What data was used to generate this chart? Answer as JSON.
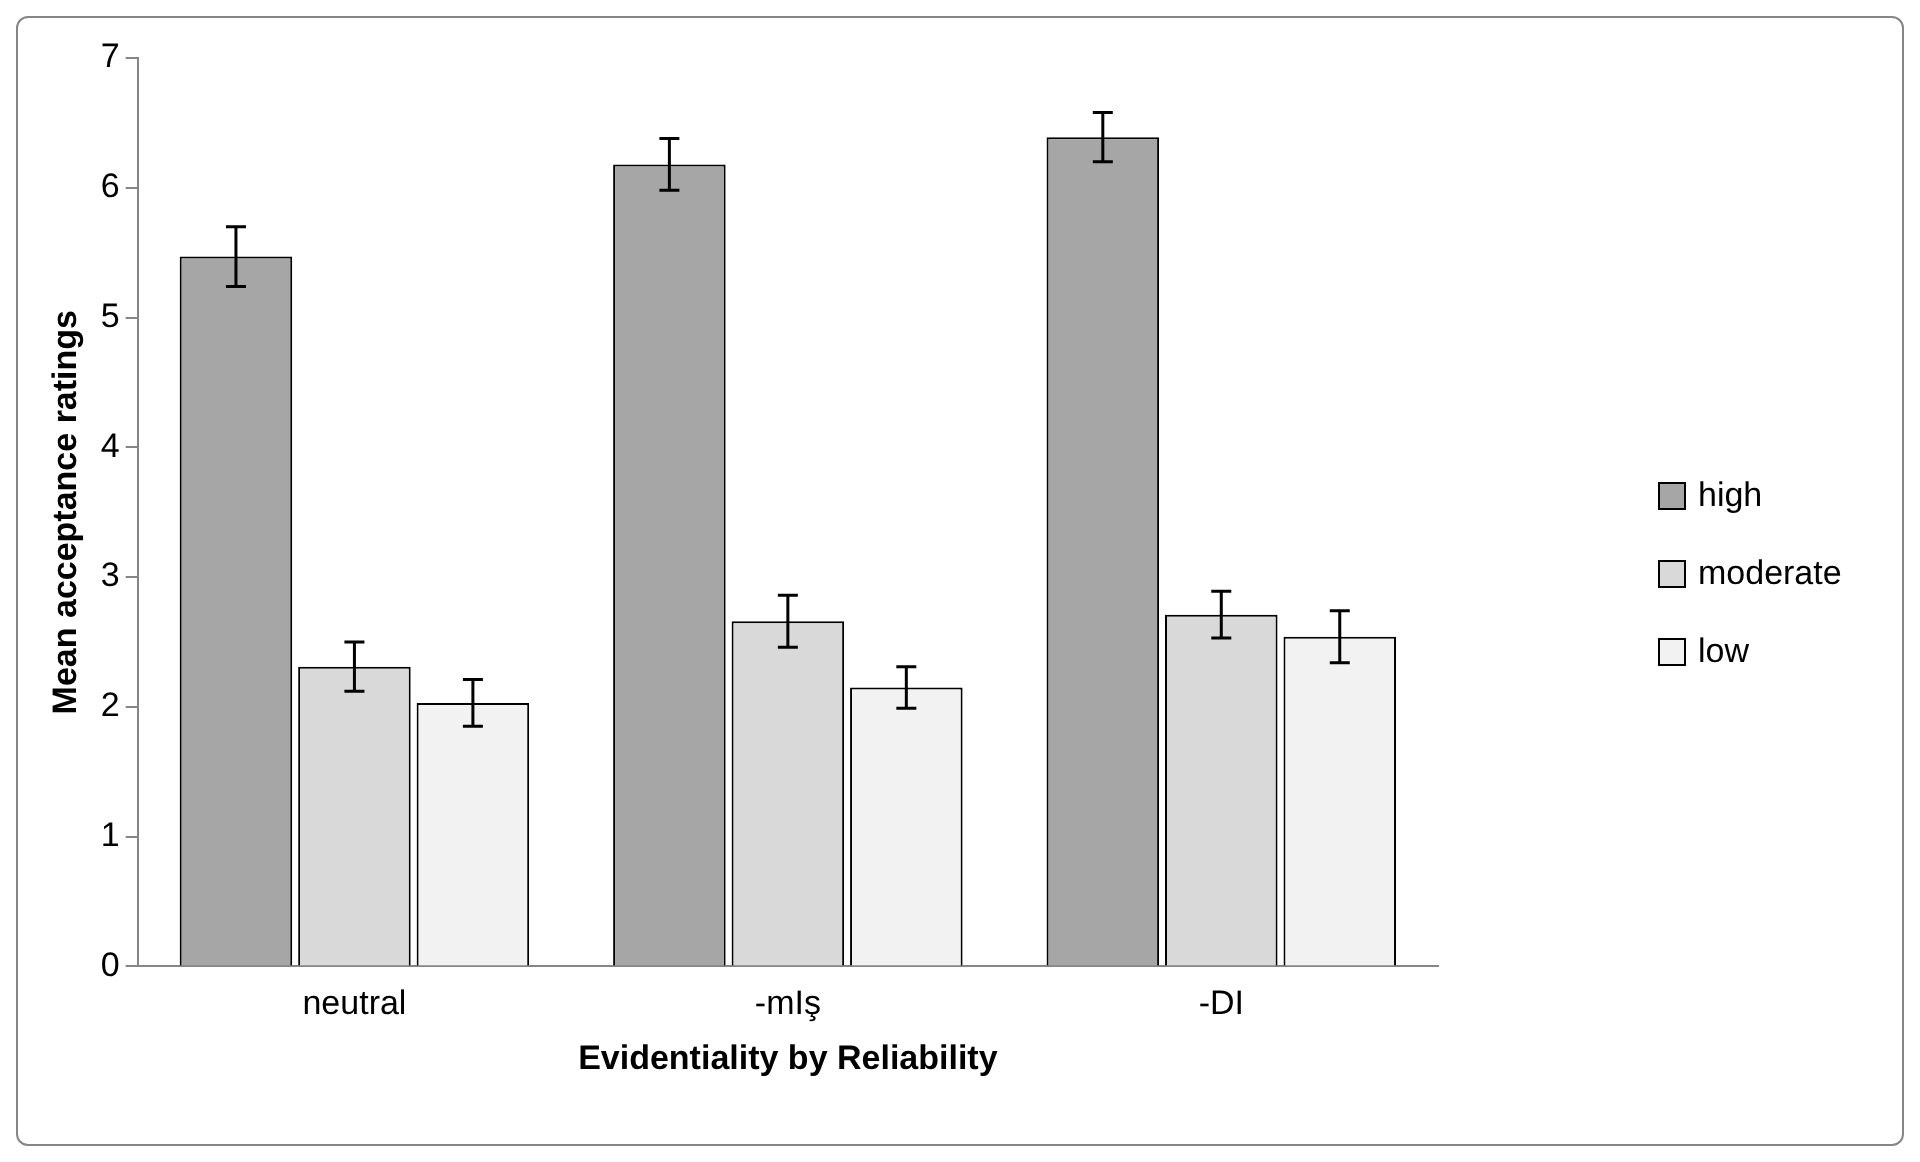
{
  "chart_data": {
    "type": "bar",
    "xlabel": "Evidentiality by Reliability",
    "ylabel": "Mean acceptance ratings",
    "categories": [
      "neutral",
      "-mIş",
      "-DI"
    ],
    "series": [
      {
        "name": "high",
        "color": "#a6a6a6",
        "values": [
          5.47,
          6.18,
          6.39
        ],
        "errors": [
          0.23,
          0.2,
          0.19
        ]
      },
      {
        "name": "moderate",
        "color": "#d9d9d9",
        "values": [
          2.31,
          2.66,
          2.71
        ],
        "errors": [
          0.19,
          0.2,
          0.18
        ]
      },
      {
        "name": "low",
        "color": "#f2f2f2",
        "values": [
          2.03,
          2.15,
          2.54
        ],
        "errors": [
          0.18,
          0.16,
          0.2
        ]
      }
    ],
    "ylim": [
      0,
      7
    ],
    "yticks": [
      0,
      1,
      2,
      3,
      4,
      5,
      6,
      7
    ],
    "grid": false,
    "legend": "right"
  }
}
